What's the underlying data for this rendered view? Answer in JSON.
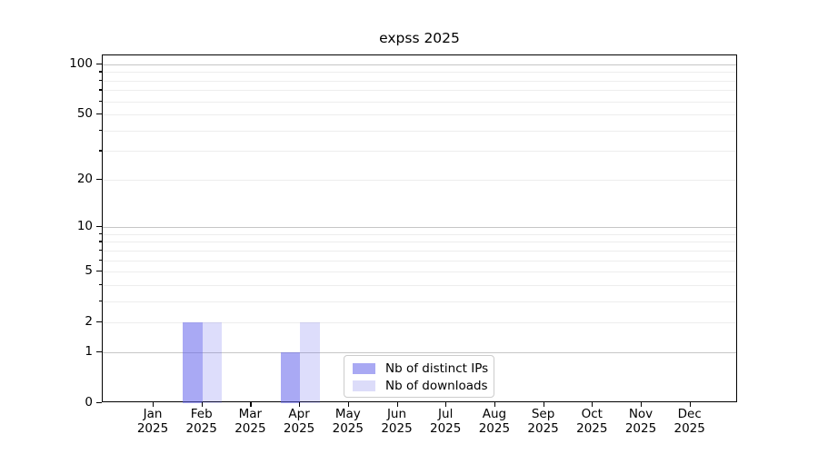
{
  "title": "expss 2025",
  "chart_data": {
    "type": "bar",
    "title": "expss 2025",
    "categories": [
      "Jan 2025",
      "Feb 2025",
      "Mar 2025",
      "Apr 2025",
      "May 2025",
      "Jun 2025",
      "Jul 2025",
      "Aug 2025",
      "Sep 2025",
      "Oct 2025",
      "Nov 2025",
      "Dec 2025"
    ],
    "series": [
      {
        "name": "Nb of distinct IPs",
        "color": "rgba(98,98,235,0.55)",
        "swatch": "#a9a9f3",
        "values": [
          0,
          2,
          0,
          1,
          0,
          0,
          0,
          0,
          0,
          0,
          0,
          0
        ]
      },
      {
        "name": "Nb of downloads",
        "color": "rgba(98,98,235,0.22)",
        "swatch": "#dcdcf9",
        "values": [
          0,
          2,
          0,
          2,
          0,
          0,
          0,
          0,
          0,
          0,
          0,
          0
        ]
      }
    ],
    "yscale": "log1p",
    "ylim": [
      0,
      113
    ],
    "yticks_major": [
      0,
      1,
      2,
      5,
      10,
      20,
      50,
      100
    ],
    "yticks_minor": [
      3,
      4,
      6,
      7,
      8,
      9,
      30,
      40,
      60,
      70,
      80,
      90
    ],
    "grid_major": [
      1,
      10,
      100
    ],
    "grid_minor": [
      2,
      3,
      4,
      5,
      6,
      7,
      8,
      9,
      20,
      30,
      40,
      50,
      60,
      70,
      80,
      90
    ],
    "grid": "horizontal",
    "legend_position": "lower center inside plot"
  },
  "colors": {
    "background": "#ffffff",
    "axis": "#000000",
    "text": "#000000",
    "grid_major": "#c6c6c6",
    "grid_minor": "#ededed",
    "legend_border": "#cccccc"
  }
}
